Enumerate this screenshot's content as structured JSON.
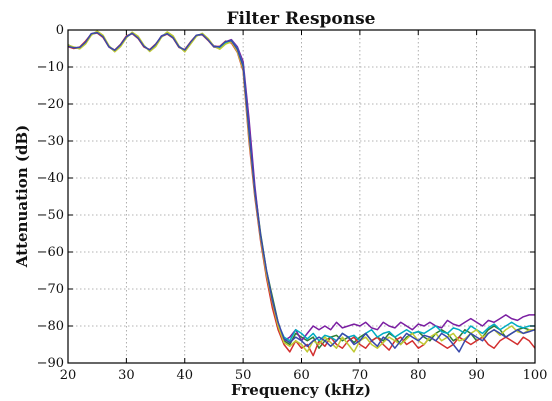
{
  "chart_data": {
    "type": "line",
    "title": "Filter Response",
    "xlabel": "Frequency (kHz)",
    "ylabel": "Attenuation (dB)",
    "xlim": [
      20,
      100
    ],
    "ylim": [
      -90,
      0
    ],
    "xticks": [
      20,
      30,
      40,
      50,
      60,
      70,
      80,
      90,
      100
    ],
    "yticks": [
      0,
      -10,
      -20,
      -30,
      -40,
      -50,
      -60,
      -70,
      -80,
      -90
    ],
    "xtick_labels": [
      "20",
      "30",
      "40",
      "50",
      "60",
      "70",
      "80",
      "90",
      "100"
    ],
    "ytick_labels": [
      "0",
      "−10",
      "−20",
      "−30",
      "−40",
      "−50",
      "−60",
      "−70",
      "−80",
      "−90"
    ],
    "grid": true,
    "x": [
      20,
      21,
      22,
      23,
      24,
      25,
      26,
      27,
      28,
      29,
      30,
      31,
      32,
      33,
      34,
      35,
      36,
      37,
      38,
      39,
      40,
      41,
      42,
      43,
      44,
      45,
      46,
      47,
      48,
      49,
      50,
      51,
      52,
      53,
      54,
      55,
      56,
      57,
      58,
      59,
      60,
      61,
      62,
      63,
      64,
      65,
      66,
      67,
      68,
      69,
      70,
      71,
      72,
      73,
      74,
      75,
      76,
      77,
      78,
      79,
      80,
      81,
      82,
      83,
      84,
      85,
      86,
      87,
      88,
      89,
      90,
      91,
      92,
      93,
      94,
      95,
      96,
      97,
      98,
      99,
      100
    ],
    "series": [
      {
        "color": "#2e7d32",
        "values": [
          -4.0,
          -4.8,
          -5.0,
          -3.6,
          -1.2,
          -0.4,
          -1.5,
          -4.4,
          -5.8,
          -4.4,
          -2.0,
          -0.7,
          -1.8,
          -4.2,
          -5.7,
          -4.4,
          -1.9,
          -0.6,
          -1.7,
          -4.4,
          -5.8,
          -3.7,
          -1.6,
          -1.0,
          -2.4,
          -4.5,
          -5.0,
          -3.6,
          -3.0,
          -5.5,
          -10.0,
          -28.0,
          -43.0,
          -55.0,
          -65.0,
          -72.0,
          -79.0,
          -84.0,
          -85.0,
          -82.0,
          -83.0,
          -84.0,
          -83.0,
          -86.0,
          -84.0,
          -83.0,
          -82.5,
          -84.0,
          -83.0,
          -84.5,
          -83.0,
          -82.0,
          -84.0,
          -83.0,
          -84.0,
          -82.0,
          -83.0,
          -85.0,
          -83.0,
          -82.0,
          -81.5,
          -83.0,
          -84.0,
          -82.0,
          -81.0,
          -82.0,
          -84.0,
          -83.0,
          -81.0,
          -82.0,
          -84.0,
          -83.0,
          -81.0,
          -80.0,
          -81.0,
          -83.0,
          -82.0,
          -81.0,
          -80.5,
          -81.0,
          -81.0
        ]
      },
      {
        "color": "#7b1fa2",
        "values": [
          -4.3,
          -4.9,
          -4.8,
          -3.2,
          -1.0,
          -0.6,
          -1.9,
          -4.6,
          -5.6,
          -4.1,
          -1.7,
          -0.8,
          -2.1,
          -4.5,
          -5.5,
          -4.0,
          -1.6,
          -0.9,
          -2.0,
          -4.6,
          -5.5,
          -3.4,
          -1.5,
          -1.2,
          -2.6,
          -4.3,
          -4.6,
          -3.2,
          -2.6,
          -4.5,
          -8.5,
          -24.0,
          -42.0,
          -56.0,
          -66.0,
          -74.0,
          -80.0,
          -84.0,
          -83.0,
          -81.0,
          -84.0,
          -82.0,
          -80.0,
          -81.0,
          -80.0,
          -81.0,
          -79.0,
          -80.5,
          -80.0,
          -79.5,
          -80.0,
          -79.0,
          -80.5,
          -81.0,
          -79.0,
          -80.0,
          -80.5,
          -79.0,
          -80.0,
          -81.0,
          -79.5,
          -80.0,
          -79.0,
          -80.0,
          -80.5,
          -78.5,
          -79.5,
          -80.0,
          -79.0,
          -78.0,
          -79.0,
          -80.0,
          -78.5,
          -79.0,
          -78.0,
          -77.0,
          -78.0,
          -78.5,
          -77.5,
          -77.0,
          -77.0
        ]
      },
      {
        "color": "#d32f2f",
        "values": [
          -4.5,
          -5.0,
          -4.6,
          -3.0,
          -1.1,
          -0.8,
          -2.0,
          -4.5,
          -5.4,
          -3.9,
          -1.6,
          -1.0,
          -2.3,
          -4.6,
          -5.3,
          -3.8,
          -1.8,
          -1.1,
          -2.2,
          -4.7,
          -5.3,
          -3.2,
          -1.4,
          -1.3,
          -2.8,
          -4.6,
          -4.4,
          -3.0,
          -3.5,
          -6.0,
          -11.0,
          -30.0,
          -45.0,
          -57.0,
          -67.0,
          -75.0,
          -81.0,
          -85.0,
          -87.0,
          -84.0,
          -86.0,
          -85.0,
          -88.0,
          -84.0,
          -85.5,
          -83.0,
          -85.0,
          -86.0,
          -84.0,
          -83.0,
          -85.0,
          -86.0,
          -84.0,
          -83.0,
          -85.0,
          -86.5,
          -84.0,
          -83.0,
          -85.0,
          -84.0,
          -86.0,
          -85.0,
          -83.0,
          -84.0,
          -85.0,
          -86.0,
          -85.0,
          -83.0,
          -84.0,
          -85.0,
          -84.0,
          -83.0,
          -85.0,
          -86.0,
          -84.0,
          -83.0,
          -84.0,
          -85.0,
          -83.0,
          -84.0,
          -86.0
        ]
      },
      {
        "color": "#00acc1",
        "values": [
          -4.2,
          -4.7,
          -4.9,
          -3.4,
          -1.3,
          -0.5,
          -1.7,
          -4.3,
          -5.7,
          -4.2,
          -1.9,
          -0.8,
          -1.9,
          -4.3,
          -5.6,
          -4.2,
          -1.8,
          -0.7,
          -1.9,
          -4.5,
          -5.6,
          -3.5,
          -1.5,
          -1.1,
          -2.5,
          -4.4,
          -4.8,
          -3.4,
          -2.8,
          -5.0,
          -9.5,
          -27.0,
          -44.0,
          -56.0,
          -65.5,
          -73.0,
          -79.5,
          -83.0,
          -84.0,
          -81.0,
          -82.0,
          -83.5,
          -82.0,
          -84.0,
          -82.5,
          -83.0,
          -84.0,
          -82.0,
          -83.0,
          -82.5,
          -84.0,
          -82.0,
          -81.0,
          -83.0,
          -82.0,
          -81.5,
          -83.0,
          -82.0,
          -81.0,
          -82.0,
          -81.5,
          -82.0,
          -81.0,
          -80.0,
          -81.5,
          -82.0,
          -80.5,
          -81.0,
          -82.0,
          -80.0,
          -81.0,
          -82.0,
          -80.5,
          -79.5,
          -81.0,
          -80.0,
          -79.0,
          -80.0,
          -80.5,
          -80.0,
          -80.0
        ]
      },
      {
        "color": "#c0ca33",
        "values": [
          -4.1,
          -4.6,
          -5.1,
          -3.8,
          -1.4,
          -0.3,
          -1.4,
          -4.2,
          -5.9,
          -4.5,
          -2.1,
          -0.6,
          -1.7,
          -4.1,
          -5.8,
          -4.5,
          -2.0,
          -0.5,
          -1.6,
          -4.3,
          -5.9,
          -3.8,
          -1.7,
          -0.9,
          -2.3,
          -4.4,
          -5.2,
          -3.8,
          -3.2,
          -5.8,
          -10.5,
          -29.0,
          -44.0,
          -56.0,
          -66.0,
          -73.5,
          -80.0,
          -84.5,
          -85.5,
          -84.0,
          -85.0,
          -87.0,
          -84.0,
          -85.0,
          -83.0,
          -84.5,
          -86.0,
          -83.0,
          -85.0,
          -87.0,
          -84.0,
          -83.0,
          -85.0,
          -86.0,
          -84.5,
          -83.0,
          -84.0,
          -85.0,
          -83.5,
          -82.0,
          -84.0,
          -85.0,
          -83.0,
          -82.0,
          -84.0,
          -83.0,
          -82.0,
          -84.0,
          -83.5,
          -82.0,
          -81.0,
          -83.0,
          -82.0,
          -81.0,
          -82.5,
          -81.0,
          -80.0,
          -81.5,
          -82.0,
          -81.0,
          -81.0
        ]
      },
      {
        "color": "#3949ab",
        "values": [
          -4.4,
          -4.8,
          -4.7,
          -3.3,
          -1.0,
          -0.7,
          -1.8,
          -4.5,
          -5.5,
          -4.0,
          -1.8,
          -0.9,
          -2.2,
          -4.4,
          -5.4,
          -3.9,
          -1.7,
          -1.0,
          -2.1,
          -4.5,
          -5.4,
          -3.3,
          -1.4,
          -1.2,
          -2.7,
          -4.5,
          -4.5,
          -3.1,
          -2.9,
          -5.2,
          -9.8,
          -27.5,
          -43.5,
          -55.5,
          -65.0,
          -73.0,
          -79.0,
          -83.5,
          -84.5,
          -83.0,
          -84.0,
          -85.5,
          -84.0,
          -83.0,
          -84.0,
          -85.5,
          -84.0,
          -82.0,
          -83.0,
          -85.0,
          -84.0,
          -82.0,
          -84.0,
          -85.5,
          -83.0,
          -84.0,
          -86.0,
          -84.0,
          -82.0,
          -83.0,
          -84.0,
          -82.5,
          -83.0,
          -84.0,
          -82.0,
          -83.0,
          -85.0,
          -87.0,
          -84.0,
          -82.0,
          -83.0,
          -84.0,
          -82.0,
          -81.0,
          -82.0,
          -83.0,
          -82.0,
          -81.0,
          -82.0,
          -81.5,
          -81.0
        ]
      }
    ]
  }
}
